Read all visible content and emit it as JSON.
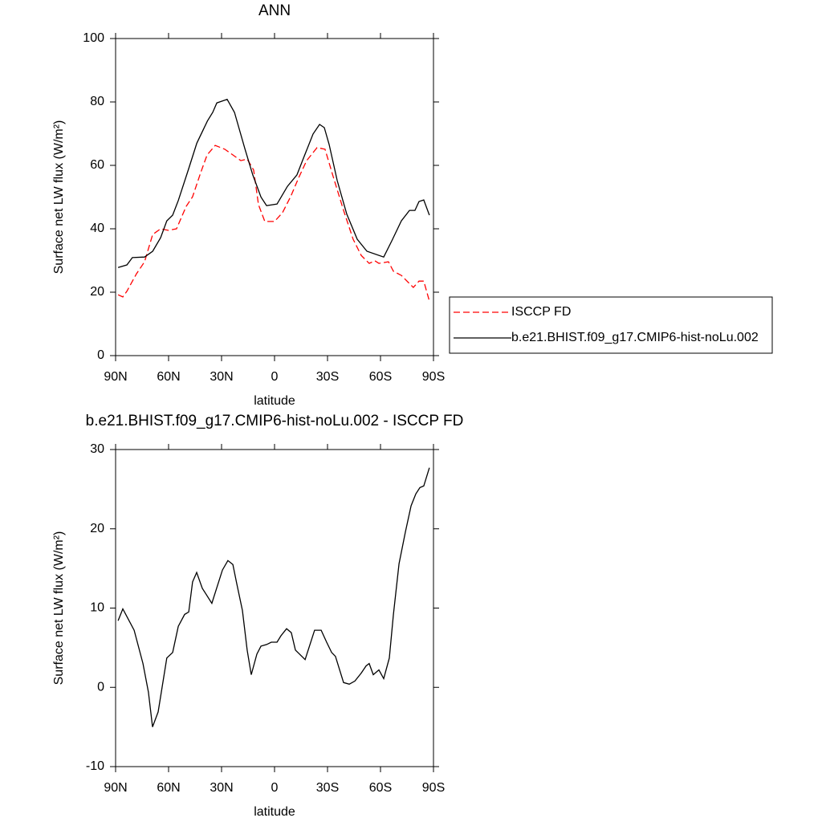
{
  "chart_data": [
    {
      "type": "line",
      "title": "ANN",
      "x_label": "latitude",
      "y_label": "Surface net LW flux (W/m²)",
      "xlim": [
        90,
        -90
      ],
      "ylim": [
        0,
        100
      ],
      "xticks": [
        {
          "value": 90,
          "label": "90N"
        },
        {
          "value": 60,
          "label": "60N"
        },
        {
          "value": 30,
          "label": "30N"
        },
        0,
        {
          "value": -30,
          "label": "30S"
        },
        {
          "value": -60,
          "label": "60S"
        },
        {
          "value": -90,
          "label": "90S"
        }
      ],
      "yticks": [
        0,
        20,
        40,
        60,
        80,
        100
      ],
      "legend": "right",
      "series": [
        {
          "name": "ISCCP FD",
          "color": "#ff0000",
          "style": "dashed",
          "x": [
            88.6,
            85.9,
            83.6,
            78.2,
            73.6,
            69,
            64.5,
            60,
            55.5,
            50,
            46.4,
            41.8,
            38.2,
            33.6,
            28.2,
            23.6,
            19.1,
            15.5,
            11.8,
            9.1,
            5.5,
            0,
            -4.5,
            -9.1,
            -13.6,
            -18.2,
            -24.1,
            -28.6,
            -33.2,
            -39.1,
            -44.5,
            -49.1,
            -53.6,
            -56.8,
            -59.1,
            -64.5,
            -67.3,
            -71.8,
            -78.6,
            -81.8,
            -84.5,
            -87.7
          ],
          "values": [
            19.2,
            18.5,
            20.3,
            25.8,
            29.6,
            38.2,
            40,
            39.5,
            40,
            47.1,
            50.1,
            57.7,
            63.3,
            66.3,
            65.1,
            63.3,
            61.5,
            62,
            58.5,
            47.6,
            42.3,
            42.3,
            45.1,
            50.1,
            56,
            61.5,
            65.6,
            65.1,
            56.5,
            45.8,
            36.7,
            31.6,
            29.1,
            29.9,
            29.1,
            29.6,
            26.6,
            25.3,
            21.5,
            23.5,
            23.5,
            17.2
          ]
        },
        {
          "name": "b.e21.BHIST.f09_g17.CMIP6-hist-noLu.002",
          "color": "#000000",
          "style": "solid",
          "x": [
            88.6,
            83.6,
            80.5,
            73.6,
            69,
            64.5,
            61,
            57.7,
            54.5,
            48.6,
            44,
            38,
            35,
            32.7,
            26.8,
            22.7,
            16.8,
            12.3,
            7.7,
            4.5,
            -1.4,
            -7.3,
            -12.7,
            -16.4,
            -21.8,
            -25.5,
            -28.2,
            -30.9,
            -35.5,
            -40.9,
            -46.8,
            -52.3,
            -61.8,
            -66.4,
            -71.8,
            -76.4,
            -79.5,
            -81.8,
            -84.5,
            -87.7
          ],
          "values": [
            27.8,
            28.6,
            30.9,
            31.1,
            32.9,
            37.2,
            42.5,
            44.3,
            48.9,
            59,
            67,
            74,
            76.7,
            79.7,
            80.8,
            76.7,
            65.3,
            57,
            50,
            47.3,
            47.8,
            53.4,
            57,
            62.3,
            69.9,
            72.9,
            71.9,
            66.6,
            55.2,
            44.6,
            36.7,
            32.9,
            31.1,
            36.2,
            42.5,
            45.8,
            45.8,
            48.6,
            49.1,
            44.3
          ]
        }
      ]
    },
    {
      "type": "line",
      "title": "b.e21.BHIST.f09_g17.CMIP6-hist-noLu.002 - ISCCP FD",
      "x_label": "latitude",
      "y_label": "Surface net LW flux (W/m²)",
      "xlim": [
        90,
        -90
      ],
      "ylim": [
        -10,
        30
      ],
      "xticks": [
        {
          "value": 90,
          "label": "90N"
        },
        {
          "value": 60,
          "label": "60N"
        },
        {
          "value": 30,
          "label": "30N"
        },
        0,
        {
          "value": -30,
          "label": "30S"
        },
        {
          "value": -60,
          "label": "60S"
        },
        {
          "value": -90,
          "label": "90S"
        }
      ],
      "yticks": [
        -10,
        0,
        10,
        20,
        30
      ],
      "series": [
        {
          "color": "#000000",
          "style": "solid",
          "x": [
            88.6,
            85.9,
            79.5,
            74.5,
            71.4,
            69.1,
            65.9,
            61,
            57.7,
            54.5,
            50.9,
            48.6,
            46.4,
            44.1,
            40.9,
            35.5,
            29.5,
            26.4,
            23.6,
            21.4,
            18.2,
            15.5,
            13.2,
            10,
            7.7,
            4.5,
            1.8,
            -1.4,
            -3.6,
            -6.8,
            -9.5,
            -11.8,
            -17.3,
            -22.7,
            -26.4,
            -29.5,
            -32.3,
            -34.5,
            -39.1,
            -42.3,
            -45.5,
            -49.1,
            -51.8,
            -53.6,
            -55.9,
            -59.1,
            -61.8,
            -65,
            -67.3,
            -70.5,
            -74.1,
            -77.3,
            -80,
            -82.3,
            -84.5,
            -87.7
          ],
          "values": [
            8.4,
            9.9,
            7.2,
            3,
            -0.6,
            -5,
            -3.1,
            3.7,
            4.4,
            7.7,
            9.2,
            9.5,
            13.3,
            14.5,
            12.5,
            10.6,
            14.8,
            16,
            15.5,
            13.1,
            9.7,
            4.7,
            1.6,
            4.2,
            5.2,
            5.4,
            5.7,
            5.7,
            6.5,
            7.4,
            6.9,
            4.7,
            3.5,
            7.2,
            7.2,
            5.7,
            4.4,
            3.9,
            0.6,
            0.4,
            0.8,
            1.8,
            2.7,
            3,
            1.6,
            2.2,
            1.1,
            3.7,
            9.2,
            15.6,
            19.6,
            22.9,
            24.4,
            25.2,
            25.4,
            27.7
          ]
        }
      ]
    }
  ]
}
